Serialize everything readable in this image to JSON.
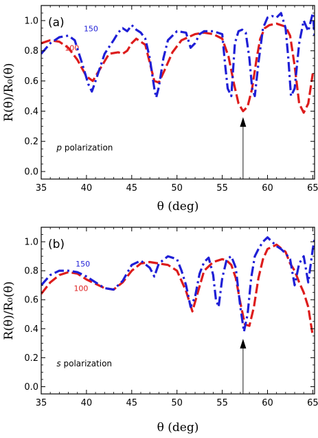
{
  "colors": {
    "series_100": "#dd1c1c",
    "series_150": "#1f1fd6",
    "frame": "#000000",
    "arrow": "#000000"
  },
  "chart_data": [
    {
      "type": "line",
      "panel_label": "(a)",
      "annotation": "p polarization",
      "annotation_symbol": "p",
      "annotation_text": "polarization",
      "xlabel": "θ (deg)",
      "ylabel": "R(θ)/R₀(θ)",
      "xlim": [
        35,
        65.2
      ],
      "ylim": [
        -0.05,
        1.1
      ],
      "xticks": [
        35,
        40,
        45,
        50,
        55,
        60,
        65
      ],
      "yticks": [
        "0.0",
        "0.2",
        "0.4",
        "0.6",
        "0.8",
        "1.0"
      ],
      "arrow_x": 57.3,
      "series": [
        {
          "name": "100",
          "color": "#dd1c1c",
          "x": [
            35,
            36,
            37,
            38,
            39,
            40,
            40.7,
            41.5,
            42.5,
            43.5,
            44,
            44.5,
            45,
            45.5,
            46,
            46.5,
            47,
            47.5,
            48,
            48.7,
            49.5,
            50.5,
            52,
            53,
            54,
            55,
            55.7,
            56.3,
            56.8,
            57.3,
            57.8,
            58.3,
            58.8,
            59.2,
            59.7,
            60.2,
            61,
            62,
            62.5,
            63,
            63.5,
            64,
            64.5,
            65
          ],
          "y": [
            0.85,
            0.87,
            0.86,
            0.82,
            0.74,
            0.63,
            0.6,
            0.68,
            0.78,
            0.79,
            0.78,
            0.8,
            0.85,
            0.88,
            0.86,
            0.84,
            0.72,
            0.6,
            0.59,
            0.68,
            0.79,
            0.87,
            0.91,
            0.92,
            0.91,
            0.88,
            0.76,
            0.58,
            0.45,
            0.4,
            0.43,
            0.55,
            0.75,
            0.88,
            0.95,
            0.97,
            0.98,
            0.96,
            0.9,
            0.7,
            0.45,
            0.39,
            0.45,
            0.65
          ]
        },
        {
          "name": "150",
          "color": "#1f1fd6",
          "x": [
            35,
            36,
            37,
            38,
            38.7,
            39.5,
            40.2,
            40.6,
            41,
            42,
            43,
            43.5,
            44,
            44.5,
            45,
            45.5,
            46,
            46.5,
            47,
            47.5,
            47.7,
            48,
            48.5,
            49,
            50,
            51,
            51.5,
            52,
            52.5,
            53,
            54,
            55,
            55.3,
            55.6,
            56,
            56.4,
            56.8,
            57.2,
            57.6,
            58,
            58.3,
            58.6,
            59,
            59.5,
            60,
            60.5,
            61,
            61.5,
            62,
            62.3,
            62.6,
            63,
            63.5,
            64,
            64.5,
            65,
            65.2
          ],
          "y": [
            0.78,
            0.85,
            0.89,
            0.9,
            0.87,
            0.72,
            0.58,
            0.53,
            0.6,
            0.78,
            0.87,
            0.92,
            0.95,
            0.93,
            0.97,
            0.94,
            0.92,
            0.88,
            0.75,
            0.55,
            0.49,
            0.56,
            0.75,
            0.87,
            0.93,
            0.92,
            0.82,
            0.85,
            0.91,
            0.93,
            0.93,
            0.91,
            0.72,
            0.55,
            0.5,
            0.85,
            0.93,
            0.94,
            0.92,
            0.75,
            0.55,
            0.5,
            0.72,
            0.95,
            1.02,
            1.03,
            1.02,
            1.05,
            0.95,
            0.75,
            0.5,
            0.55,
            0.85,
            1.0,
            0.93,
            1.05,
            0.9
          ]
        }
      ]
    },
    {
      "type": "line",
      "panel_label": "(b)",
      "annotation": "s polarization",
      "annotation_symbol": "s",
      "annotation_text": "polarization",
      "xlabel": "θ (deg)",
      "ylabel": "R(θ)/R₀(θ)",
      "xlim": [
        35,
        65.2
      ],
      "ylim": [
        -0.05,
        1.1
      ],
      "xticks": [
        35,
        40,
        45,
        50,
        55,
        60,
        65
      ],
      "yticks": [
        "0.0",
        "0.2",
        "0.4",
        "0.6",
        "0.8",
        "1.0"
      ],
      "arrow_x": 57.3,
      "series": [
        {
          "name": "100",
          "color": "#dd1c1c",
          "x": [
            35,
            36,
            37,
            38,
            39,
            40,
            41,
            42,
            43,
            44,
            45,
            46,
            47,
            48,
            49,
            50,
            51,
            51.7,
            52.3,
            53,
            54,
            55,
            55.5,
            56,
            56.5,
            57,
            57.5,
            58,
            58.5,
            59,
            59.5,
            60,
            61,
            62,
            62.5,
            63,
            63.5,
            64,
            64.5,
            65
          ],
          "y": [
            0.64,
            0.72,
            0.77,
            0.79,
            0.78,
            0.74,
            0.71,
            0.68,
            0.67,
            0.72,
            0.8,
            0.85,
            0.86,
            0.85,
            0.84,
            0.8,
            0.66,
            0.52,
            0.65,
            0.8,
            0.86,
            0.88,
            0.87,
            0.84,
            0.75,
            0.58,
            0.43,
            0.42,
            0.55,
            0.75,
            0.88,
            0.95,
            0.98,
            0.93,
            0.85,
            0.8,
            0.72,
            0.65,
            0.55,
            0.35
          ]
        },
        {
          "name": "150",
          "color": "#1f1fd6",
          "x": [
            35,
            36,
            37,
            38,
            39,
            40,
            41,
            42,
            43,
            44,
            45,
            46,
            47,
            47.5,
            48,
            49,
            50,
            50.5,
            51,
            51.5,
            52,
            52.5,
            53,
            53.5,
            54,
            54.3,
            54.6,
            55,
            55.5,
            56,
            56.5,
            57,
            57.4,
            57.8,
            58.2,
            58.6,
            59,
            59.5,
            60,
            60.5,
            61,
            61.5,
            62,
            62.5,
            63,
            63.5,
            64,
            64.5,
            65,
            65.2
          ],
          "y": [
            0.7,
            0.77,
            0.8,
            0.8,
            0.79,
            0.76,
            0.72,
            0.68,
            0.67,
            0.73,
            0.84,
            0.87,
            0.82,
            0.76,
            0.85,
            0.9,
            0.88,
            0.8,
            0.7,
            0.55,
            0.62,
            0.78,
            0.86,
            0.89,
            0.77,
            0.6,
            0.55,
            0.75,
            0.88,
            0.9,
            0.82,
            0.55,
            0.38,
            0.5,
            0.75,
            0.9,
            0.95,
            1.0,
            1.03,
            1.0,
            0.97,
            0.95,
            0.92,
            0.88,
            0.7,
            0.85,
            0.9,
            0.72,
            0.95,
            1.02
          ]
        }
      ]
    }
  ]
}
